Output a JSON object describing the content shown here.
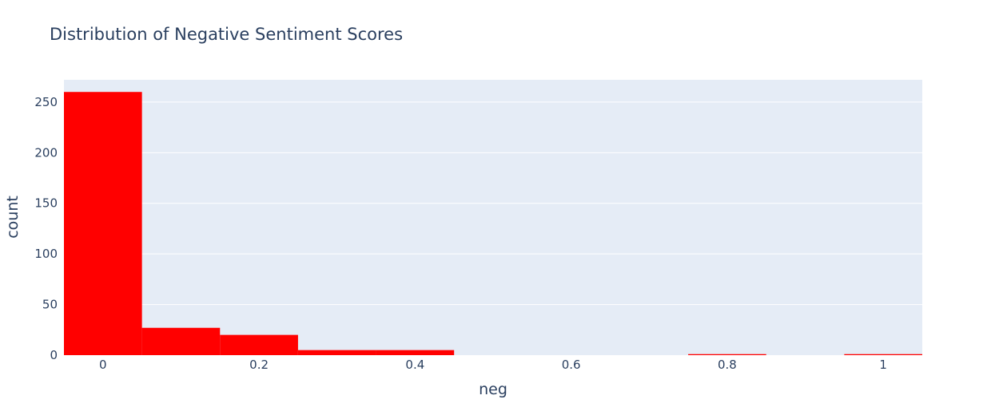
{
  "chart_data": {
    "type": "bar",
    "title": "Distribution of Negative Sentiment Scores",
    "xlabel": "neg",
    "ylabel": "count",
    "bin_width": 0.1,
    "x_range": [
      -0.05,
      1.05
    ],
    "y_range": [
      0,
      272
    ],
    "x_ticks": [
      {
        "value": 0,
        "label": "0"
      },
      {
        "value": 0.2,
        "label": "0.2"
      },
      {
        "value": 0.4,
        "label": "0.4"
      },
      {
        "value": 0.6,
        "label": "0.6"
      },
      {
        "value": 0.8,
        "label": "0.8"
      },
      {
        "value": 1,
        "label": "1"
      }
    ],
    "y_ticks": [
      {
        "value": 0,
        "label": "0"
      },
      {
        "value": 50,
        "label": "50"
      },
      {
        "value": 100,
        "label": "100"
      },
      {
        "value": 150,
        "label": "150"
      },
      {
        "value": 200,
        "label": "200"
      },
      {
        "value": 250,
        "label": "250"
      }
    ],
    "bins": [
      {
        "center": 0.0,
        "count": 260
      },
      {
        "center": 0.1,
        "count": 27
      },
      {
        "center": 0.2,
        "count": 20
      },
      {
        "center": 0.3,
        "count": 5
      },
      {
        "center": 0.4,
        "count": 5
      },
      {
        "center": 0.5,
        "count": 0
      },
      {
        "center": 0.6,
        "count": 0
      },
      {
        "center": 0.7,
        "count": 0
      },
      {
        "center": 0.8,
        "count": 1
      },
      {
        "center": 0.9,
        "count": 0
      },
      {
        "center": 1.0,
        "count": 1
      }
    ],
    "bar_color": "#ff0000",
    "plot_bg": "#e5ecf6",
    "grid": true,
    "gridline_color": "#ffffff",
    "text_color": "#2a3f5f"
  }
}
